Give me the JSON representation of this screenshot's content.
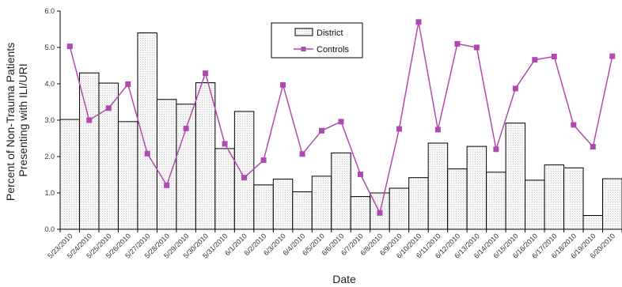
{
  "chart_data": {
    "type": "bar",
    "title": "",
    "xlabel": "Date",
    "ylabel_line1": "Percent of Non-Trauma Patients",
    "ylabel_line2": "Presenting with ILI/URI",
    "ylim": [
      0,
      6
    ],
    "yticks": [
      "0.0",
      "1.0",
      "2.0",
      "3.0",
      "4.0",
      "5.0",
      "6.0"
    ],
    "grid": false,
    "legend_position": "top-center",
    "categories": [
      "5/23/2010",
      "5/24/2010",
      "5/25/2010",
      "5/26/2010",
      "5/27/2010",
      "5/28/2010",
      "5/29/2010",
      "5/30/2010",
      "5/31/2010",
      "6/1/2010",
      "6/2/2010",
      "6/3/2010",
      "6/4/2010",
      "6/5/2010",
      "6/6/2010",
      "6/7/2010",
      "6/8/2010",
      "6/9/2010",
      "6/10/2010",
      "6/11/2010",
      "6/12/2010",
      "6/13/2010",
      "6/14/2010",
      "6/15/2010",
      "6/16/2010",
      "6/17/2010",
      "6/18/2010",
      "6/19/2010",
      "6/20/2010"
    ],
    "series": [
      {
        "name": "District",
        "kind": "bar",
        "color": "#f2f2f2",
        "values": [
          3.02,
          4.3,
          4.02,
          2.96,
          5.4,
          3.57,
          3.44,
          4.03,
          2.22,
          3.24,
          1.22,
          1.38,
          1.03,
          1.46,
          2.1,
          0.9,
          1.0,
          1.13,
          1.42,
          2.37,
          1.66,
          2.28,
          1.57,
          2.92,
          1.35,
          1.77,
          1.69,
          0.38,
          1.39
        ]
      },
      {
        "name": "Controls",
        "kind": "line",
        "color": "#b14ab0",
        "values": [
          5.03,
          3.0,
          3.33,
          3.99,
          2.08,
          1.21,
          2.77,
          4.29,
          2.35,
          1.42,
          1.9,
          3.97,
          2.07,
          2.71,
          2.96,
          1.51,
          0.45,
          2.76,
          5.7,
          2.74,
          5.1,
          5.0,
          2.2,
          3.87,
          4.66,
          4.75,
          2.87,
          2.27,
          4.76
        ]
      }
    ]
  }
}
